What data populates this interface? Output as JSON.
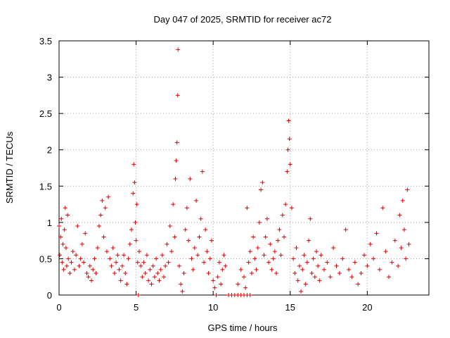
{
  "chart_data": {
    "type": "scatter",
    "title": "Day 047 of 2025, SRMTID for receiver ac72",
    "xlabel": "GPS time / hours",
    "ylabel": "SRMTID / TECUs",
    "xlim": [
      0,
      24
    ],
    "ylim": [
      0,
      3.5
    ],
    "xticks": [
      "0",
      "5",
      "10",
      "15",
      "20"
    ],
    "xtick_values": [
      0,
      5,
      10,
      15,
      20
    ],
    "yticks": [
      "0",
      "0.5",
      "1",
      "1.5",
      "2",
      "2.5",
      "3",
      "3.5"
    ],
    "ytick_values": [
      0,
      0.5,
      1,
      1.5,
      2,
      2.5,
      3,
      3.5
    ],
    "grid": true,
    "marker": "+",
    "color": "#e00000",
    "series": [
      {
        "name": "SRMTID",
        "points": [
          [
            0.0,
            0.95
          ],
          [
            0.05,
            0.55
          ],
          [
            0.1,
            0.8
          ],
          [
            0.15,
            1.05
          ],
          [
            0.2,
            0.45
          ],
          [
            0.25,
            0.7
          ],
          [
            0.3,
            0.35
          ],
          [
            0.35,
            0.9
          ],
          [
            0.4,
            1.2
          ],
          [
            0.45,
            0.65
          ],
          [
            0.5,
            0.4
          ],
          [
            0.55,
            1.1
          ],
          [
            0.6,
            0.5
          ],
          [
            0.7,
            0.3
          ],
          [
            0.8,
            0.45
          ],
          [
            0.9,
            0.6
          ],
          [
            1.0,
            0.35
          ],
          [
            1.1,
            0.55
          ],
          [
            1.2,
            0.95
          ],
          [
            1.3,
            0.4
          ],
          [
            1.4,
            0.5
          ],
          [
            1.5,
            0.7
          ],
          [
            1.6,
            0.45
          ],
          [
            1.7,
            0.85
          ],
          [
            1.8,
            0.3
          ],
          [
            1.9,
            0.25
          ],
          [
            2.0,
            0.4
          ],
          [
            2.1,
            0.2
          ],
          [
            2.2,
            0.35
          ],
          [
            2.3,
            0.5
          ],
          [
            2.4,
            0.3
          ],
          [
            2.5,
            0.65
          ],
          [
            2.6,
            0.95
          ],
          [
            2.7,
            1.1
          ],
          [
            2.8,
            1.3
          ],
          [
            2.9,
            0.8
          ],
          [
            3.0,
            1.2
          ],
          [
            3.1,
            0.6
          ],
          [
            3.2,
            1.35
          ],
          [
            3.3,
            0.5
          ],
          [
            3.4,
            0.4
          ],
          [
            3.5,
            0.65
          ],
          [
            3.6,
            0.3
          ],
          [
            3.7,
            0.45
          ],
          [
            3.8,
            0.55
          ],
          [
            3.9,
            0.35
          ],
          [
            4.0,
            0.2
          ],
          [
            4.1,
            0.4
          ],
          [
            4.2,
            0.55
          ],
          [
            4.3,
            0.3
          ],
          [
            4.4,
            0.15
          ],
          [
            4.5,
            0.5
          ],
          [
            4.6,
            0.7
          ],
          [
            4.7,
            0.9
          ],
          [
            4.8,
            1.4
          ],
          [
            4.85,
            1.8
          ],
          [
            4.9,
            1.55
          ],
          [
            4.95,
            1.0
          ],
          [
            5.0,
            0.75
          ],
          [
            5.05,
            1.25
          ],
          [
            5.1,
            0.45
          ],
          [
            5.15,
            0.0
          ],
          [
            5.2,
            0.6
          ],
          [
            5.3,
            0.4
          ],
          [
            5.4,
            0.25
          ],
          [
            5.5,
            0.45
          ],
          [
            5.6,
            0.3
          ],
          [
            5.7,
            0.55
          ],
          [
            5.8,
            0.2
          ],
          [
            5.9,
            0.35
          ],
          [
            6.0,
            0.15
          ],
          [
            6.1,
            0.4
          ],
          [
            6.2,
            0.25
          ],
          [
            6.3,
            0.5
          ],
          [
            6.4,
            0.3
          ],
          [
            6.5,
            0.2
          ],
          [
            6.6,
            0.35
          ],
          [
            6.7,
            0.55
          ],
          [
            6.8,
            0.25
          ],
          [
            6.9,
            0.4
          ],
          [
            7.0,
            0.7
          ],
          [
            7.1,
            0.45
          ],
          [
            7.2,
            0.95
          ],
          [
            7.3,
            0.6
          ],
          [
            7.4,
            1.25
          ],
          [
            7.5,
            0.8
          ],
          [
            7.55,
            1.6
          ],
          [
            7.6,
            1.85
          ],
          [
            7.65,
            2.1
          ],
          [
            7.7,
            2.75
          ],
          [
            7.72,
            3.38
          ],
          [
            7.8,
            0.4
          ],
          [
            7.9,
            0.15
          ],
          [
            8.0,
            0.05
          ],
          [
            8.1,
            0.3
          ],
          [
            8.2,
            0.9
          ],
          [
            8.3,
            1.2
          ],
          [
            8.4,
            0.75
          ],
          [
            8.5,
            1.6
          ],
          [
            8.6,
            0.5
          ],
          [
            8.7,
            0.35
          ],
          [
            8.8,
            0.65
          ],
          [
            8.9,
            1.3
          ],
          [
            9.0,
            0.55
          ],
          [
            9.1,
            0.8
          ],
          [
            9.2,
            1.05
          ],
          [
            9.3,
            1.7
          ],
          [
            9.4,
            0.45
          ],
          [
            9.5,
            0.9
          ],
          [
            9.6,
            0.6
          ],
          [
            9.7,
            0.3
          ],
          [
            9.8,
            0.5
          ],
          [
            9.9,
            0.75
          ],
          [
            10.0,
            0.2
          ],
          [
            10.1,
            0.1
          ],
          [
            10.2,
            0.0
          ],
          [
            10.3,
            0.25
          ],
          [
            10.4,
            0.45
          ],
          [
            10.5,
            0.15
          ],
          [
            10.6,
            0.35
          ],
          [
            10.7,
            0.55
          ],
          [
            10.8,
            0.4
          ],
          [
            11.0,
            0.0
          ],
          [
            11.2,
            0.0
          ],
          [
            11.4,
            0.0
          ],
          [
            11.6,
            0.0
          ],
          [
            11.8,
            0.0
          ],
          [
            12.0,
            0.0
          ],
          [
            12.2,
            0.0
          ],
          [
            12.4,
            0.0
          ],
          [
            11.6,
            0.15
          ],
          [
            11.8,
            0.35
          ],
          [
            12.0,
            0.25
          ],
          [
            12.1,
            0.1
          ],
          [
            12.2,
            1.2
          ],
          [
            12.3,
            0.45
          ],
          [
            12.4,
            0.6
          ],
          [
            12.5,
            0.3
          ],
          [
            12.6,
            0.8
          ],
          [
            12.7,
            0.5
          ],
          [
            12.8,
            0.35
          ],
          [
            12.9,
            0.65
          ],
          [
            13.0,
            1.0
          ],
          [
            13.1,
            1.45
          ],
          [
            13.2,
            1.55
          ],
          [
            13.3,
            0.55
          ],
          [
            13.4,
            0.8
          ],
          [
            13.5,
            1.05
          ],
          [
            13.6,
            0.45
          ],
          [
            13.7,
            0.7
          ],
          [
            13.8,
            0.35
          ],
          [
            13.9,
            0.5
          ],
          [
            14.0,
            0.6
          ],
          [
            14.1,
            0.3
          ],
          [
            14.2,
            0.75
          ],
          [
            14.3,
            0.9
          ],
          [
            14.4,
            0.55
          ],
          [
            14.5,
            1.1
          ],
          [
            14.6,
            0.8
          ],
          [
            14.7,
            1.25
          ],
          [
            14.8,
            1.7
          ],
          [
            14.85,
            2.0
          ],
          [
            14.9,
            2.4
          ],
          [
            14.95,
            2.15
          ],
          [
            15.0,
            1.8
          ],
          [
            15.1,
            1.2
          ],
          [
            15.2,
            0.5
          ],
          [
            15.3,
            0.3
          ],
          [
            15.4,
            0.65
          ],
          [
            15.5,
            0.2
          ],
          [
            15.6,
            0.4
          ],
          [
            15.7,
            0.05
          ],
          [
            15.8,
            0.35
          ],
          [
            15.9,
            0.55
          ],
          [
            16.0,
            0.15
          ],
          [
            16.1,
            0.45
          ],
          [
            16.2,
            0.75
          ],
          [
            16.3,
            1.05
          ],
          [
            16.4,
            0.3
          ],
          [
            16.5,
            0.5
          ],
          [
            16.6,
            0.25
          ],
          [
            16.7,
            0.6
          ],
          [
            16.8,
            0.4
          ],
          [
            16.9,
            0.2
          ],
          [
            17.0,
            0.55
          ],
          [
            17.2,
            0.35
          ],
          [
            17.4,
            0.45
          ],
          [
            17.6,
            0.25
          ],
          [
            17.8,
            0.65
          ],
          [
            18.0,
            0.4
          ],
          [
            18.2,
            0.3
          ],
          [
            18.4,
            0.5
          ],
          [
            18.6,
            0.9
          ],
          [
            18.8,
            0.35
          ],
          [
            19.0,
            0.25
          ],
          [
            19.2,
            0.45
          ],
          [
            19.4,
            0.15
          ],
          [
            19.6,
            0.3
          ],
          [
            19.8,
            0.55
          ],
          [
            20.0,
            0.4
          ],
          [
            20.2,
            0.7
          ],
          [
            20.4,
            0.5
          ],
          [
            20.6,
            0.85
          ],
          [
            20.8,
            0.35
          ],
          [
            21.0,
            1.2
          ],
          [
            21.2,
            0.6
          ],
          [
            21.4,
            0.25
          ],
          [
            21.6,
            0.45
          ],
          [
            21.8,
            0.75
          ],
          [
            22.0,
            0.4
          ],
          [
            22.1,
            1.1
          ],
          [
            22.2,
            0.65
          ],
          [
            22.3,
            1.3
          ],
          [
            22.4,
            0.9
          ],
          [
            22.5,
            0.5
          ],
          [
            22.6,
            1.45
          ],
          [
            22.7,
            0.7
          ]
        ]
      }
    ]
  }
}
